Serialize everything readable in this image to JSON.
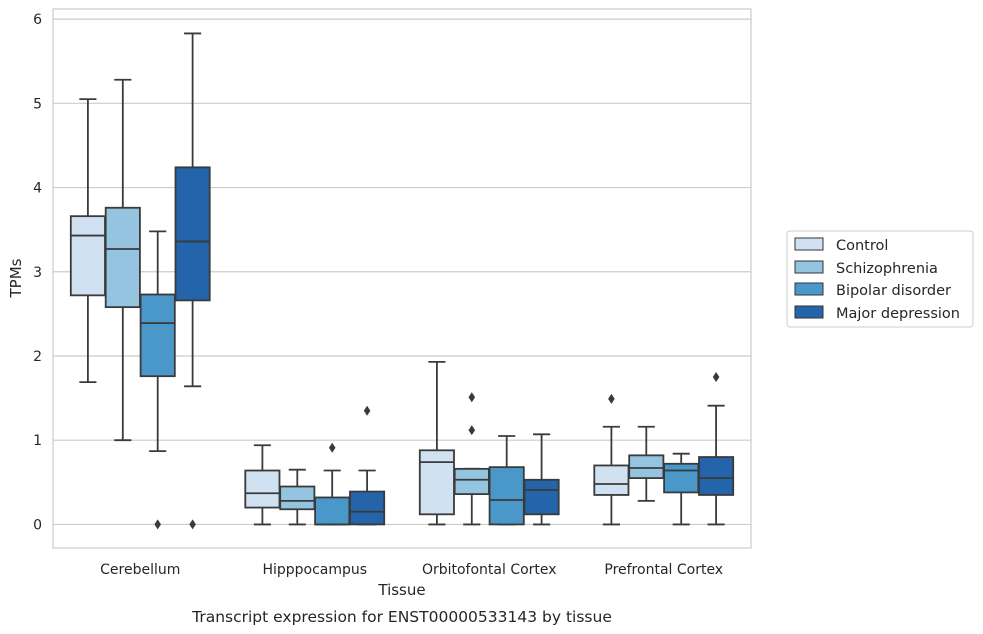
{
  "chart_data": {
    "type": "box",
    "caption": "Transcript expression for ENST00000533143 by tissue",
    "xlabel": "Tissue",
    "ylabel": "TPMs",
    "ylim": [
      -0.28,
      6.12
    ],
    "yticks": [
      0,
      1,
      2,
      3,
      4,
      5,
      6
    ],
    "grid": "horizontal",
    "legend_position": "right",
    "categories": [
      "Cerebellum",
      "Hipppocampus",
      "Orbitofontal Cortex",
      "Prefrontal Cortex"
    ],
    "series": [
      {
        "name": "Control",
        "color": "#d0e1f2",
        "boxes": [
          {
            "whisker_low": 1.69,
            "q1": 2.72,
            "median": 3.43,
            "q3": 3.66,
            "whisker_high": 5.05,
            "outliers": []
          },
          {
            "whisker_low": 0.0,
            "q1": 0.2,
            "median": 0.37,
            "q3": 0.64,
            "whisker_high": 0.94,
            "outliers": []
          },
          {
            "whisker_low": 0.0,
            "q1": 0.12,
            "median": 0.74,
            "q3": 0.88,
            "whisker_high": 1.93,
            "outliers": []
          },
          {
            "whisker_low": 0.0,
            "q1": 0.35,
            "median": 0.48,
            "q3": 0.7,
            "whisker_high": 1.16,
            "outliers": [
              1.49
            ]
          }
        ]
      },
      {
        "name": "Schizophrenia",
        "color": "#94c4df",
        "boxes": [
          {
            "whisker_low": 1.0,
            "q1": 2.58,
            "median": 3.27,
            "q3": 3.76,
            "whisker_high": 5.28,
            "outliers": []
          },
          {
            "whisker_low": 0.0,
            "q1": 0.18,
            "median": 0.28,
            "q3": 0.45,
            "whisker_high": 0.65,
            "outliers": []
          },
          {
            "whisker_low": 0.0,
            "q1": 0.36,
            "median": 0.53,
            "q3": 0.66,
            "whisker_high": 0.66,
            "outliers": [
              1.12,
              1.51
            ]
          },
          {
            "whisker_low": 0.28,
            "q1": 0.55,
            "median": 0.67,
            "q3": 0.82,
            "whisker_high": 1.16,
            "outliers": []
          }
        ]
      },
      {
        "name": "Bipolar disorder",
        "color": "#4a98c9",
        "boxes": [
          {
            "whisker_low": 0.87,
            "q1": 1.76,
            "median": 2.39,
            "q3": 2.73,
            "whisker_high": 3.48,
            "outliers": [
              0.0
            ]
          },
          {
            "whisker_low": 0.0,
            "q1": 0.0,
            "median": 0.0,
            "q3": 0.32,
            "whisker_high": 0.64,
            "outliers": [
              0.91
            ]
          },
          {
            "whisker_low": 0.0,
            "q1": 0.0,
            "median": 0.29,
            "q3": 0.68,
            "whisker_high": 1.05,
            "outliers": []
          },
          {
            "whisker_low": 0.0,
            "q1": 0.38,
            "median": 0.64,
            "q3": 0.72,
            "whisker_high": 0.84,
            "outliers": []
          }
        ]
      },
      {
        "name": "Major depression",
        "color": "#2464ab",
        "boxes": [
          {
            "whisker_low": 1.64,
            "q1": 2.66,
            "median": 3.36,
            "q3": 4.24,
            "whisker_high": 5.83,
            "outliers": [
              0.0
            ]
          },
          {
            "whisker_low": 0.0,
            "q1": 0.0,
            "median": 0.15,
            "q3": 0.39,
            "whisker_high": 0.64,
            "outliers": [
              1.35
            ]
          },
          {
            "whisker_low": 0.0,
            "q1": 0.12,
            "median": 0.41,
            "q3": 0.53,
            "whisker_high": 1.07,
            "outliers": []
          },
          {
            "whisker_low": 0.0,
            "q1": 0.35,
            "median": 0.55,
            "q3": 0.8,
            "whisker_high": 1.41,
            "outliers": [
              1.75
            ]
          }
        ]
      }
    ]
  }
}
